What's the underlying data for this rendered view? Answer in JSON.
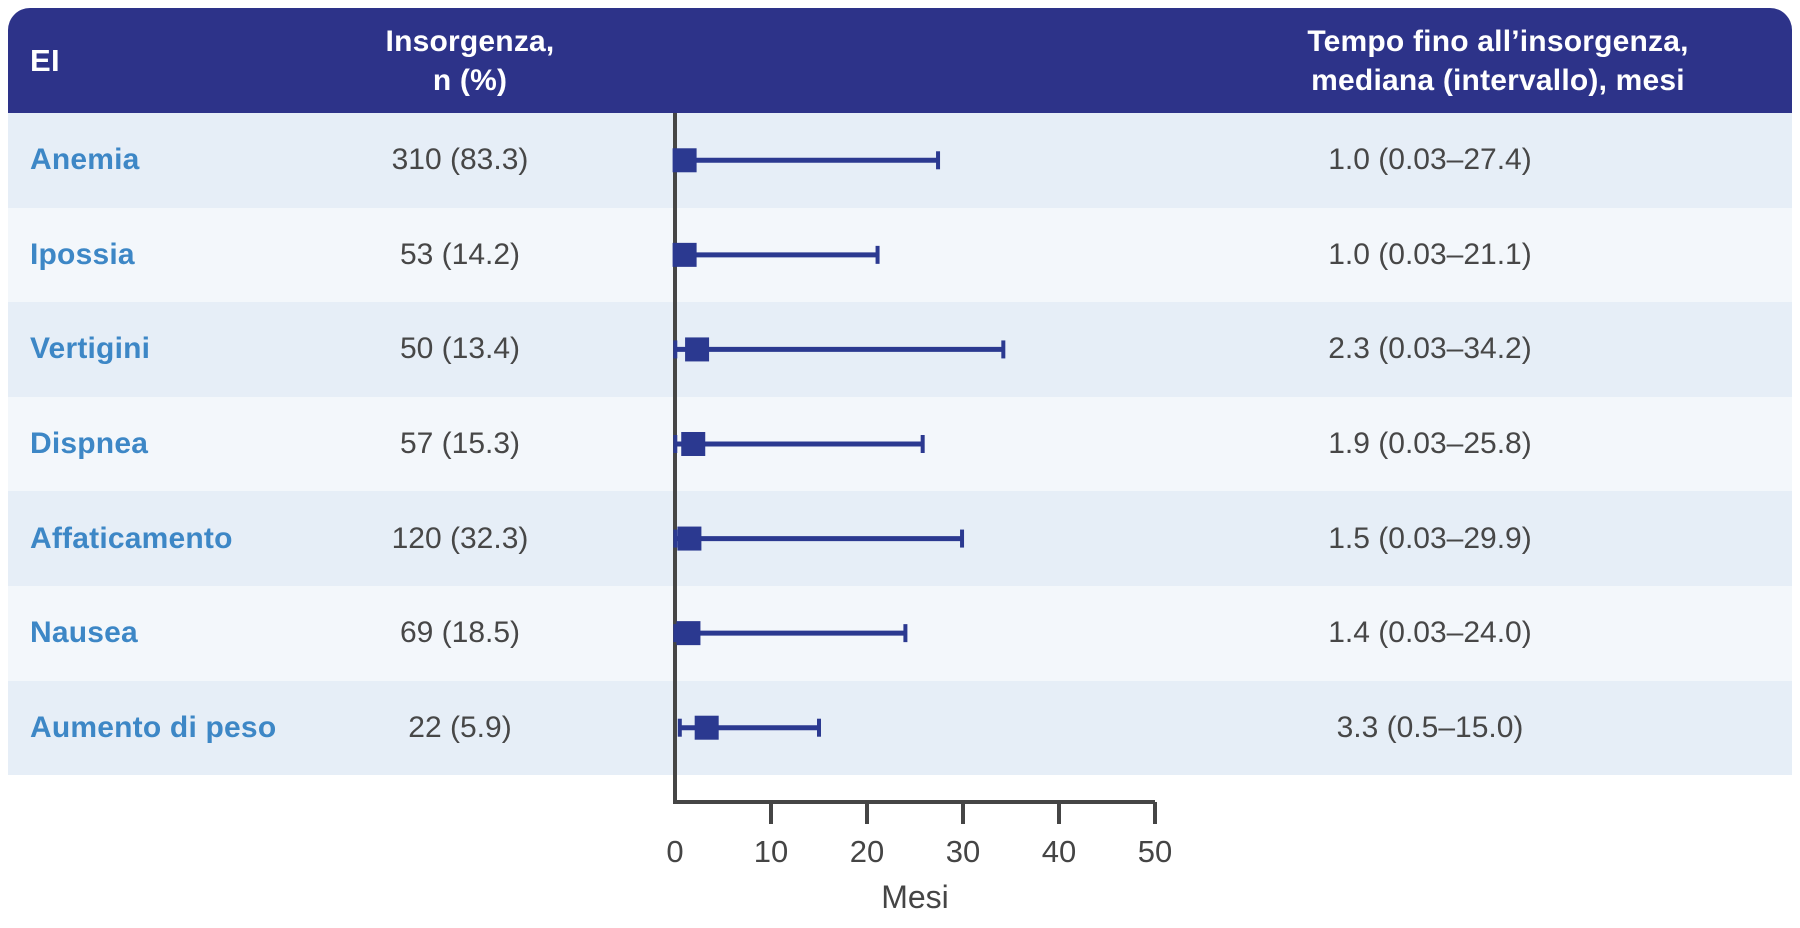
{
  "header": {
    "col_ei": "EI",
    "col_insorgenza": [
      "Insorgenza,",
      "n (%)"
    ],
    "col_tempo": [
      "Tempo fino all’insorgenza,",
      "mediana (intervallo), mesi"
    ]
  },
  "chart_data": {
    "type": "forest",
    "xlabel": "Mesi",
    "xlim": [
      0,
      50
    ],
    "x_ticks": [
      0,
      10,
      20,
      30,
      40,
      50
    ],
    "legend": "none",
    "grid": "off",
    "rows": [
      {
        "label": "Anemia",
        "n_pct": "310 (83.3)",
        "time_median_range": "1.0 (0.03–27.4)",
        "median": 1.0,
        "min": 0.03,
        "max": 27.4
      },
      {
        "label": "Ipossia",
        "n_pct": "53 (14.2)",
        "time_median_range": "1.0 (0.03–21.1)",
        "median": 1.0,
        "min": 0.03,
        "max": 21.1
      },
      {
        "label": "Vertigini",
        "n_pct": "50 (13.4)",
        "time_median_range": "2.3 (0.03–34.2)",
        "median": 2.3,
        "min": 0.03,
        "max": 34.2
      },
      {
        "label": "Dispnea",
        "n_pct": "57 (15.3)",
        "time_median_range": "1.9 (0.03–25.8)",
        "median": 1.9,
        "min": 0.03,
        "max": 25.8
      },
      {
        "label": "Affaticamento",
        "n_pct": "120 (32.3)",
        "time_median_range": "1.5 (0.03–29.9)",
        "median": 1.5,
        "min": 0.03,
        "max": 29.9
      },
      {
        "label": "Nausea",
        "n_pct": "69 (18.5)",
        "time_median_range": "1.4 (0.03–24.0)",
        "median": 1.4,
        "min": 0.03,
        "max": 24.0
      },
      {
        "label": "Aumento di peso",
        "n_pct": "22 (5.9)",
        "time_median_range": "3.3 (0.5–15.0)",
        "median": 3.3,
        "min": 0.5,
        "max": 15.0
      }
    ],
    "colors": {
      "header_bg": "#2D3389",
      "marker": "#2B3990",
      "label_blue": "#3D87C6",
      "value_text": "#474747",
      "axis": "#454545",
      "row_band_dark": "#E6EEF7",
      "row_band_light": "#F3F7FB"
    }
  }
}
